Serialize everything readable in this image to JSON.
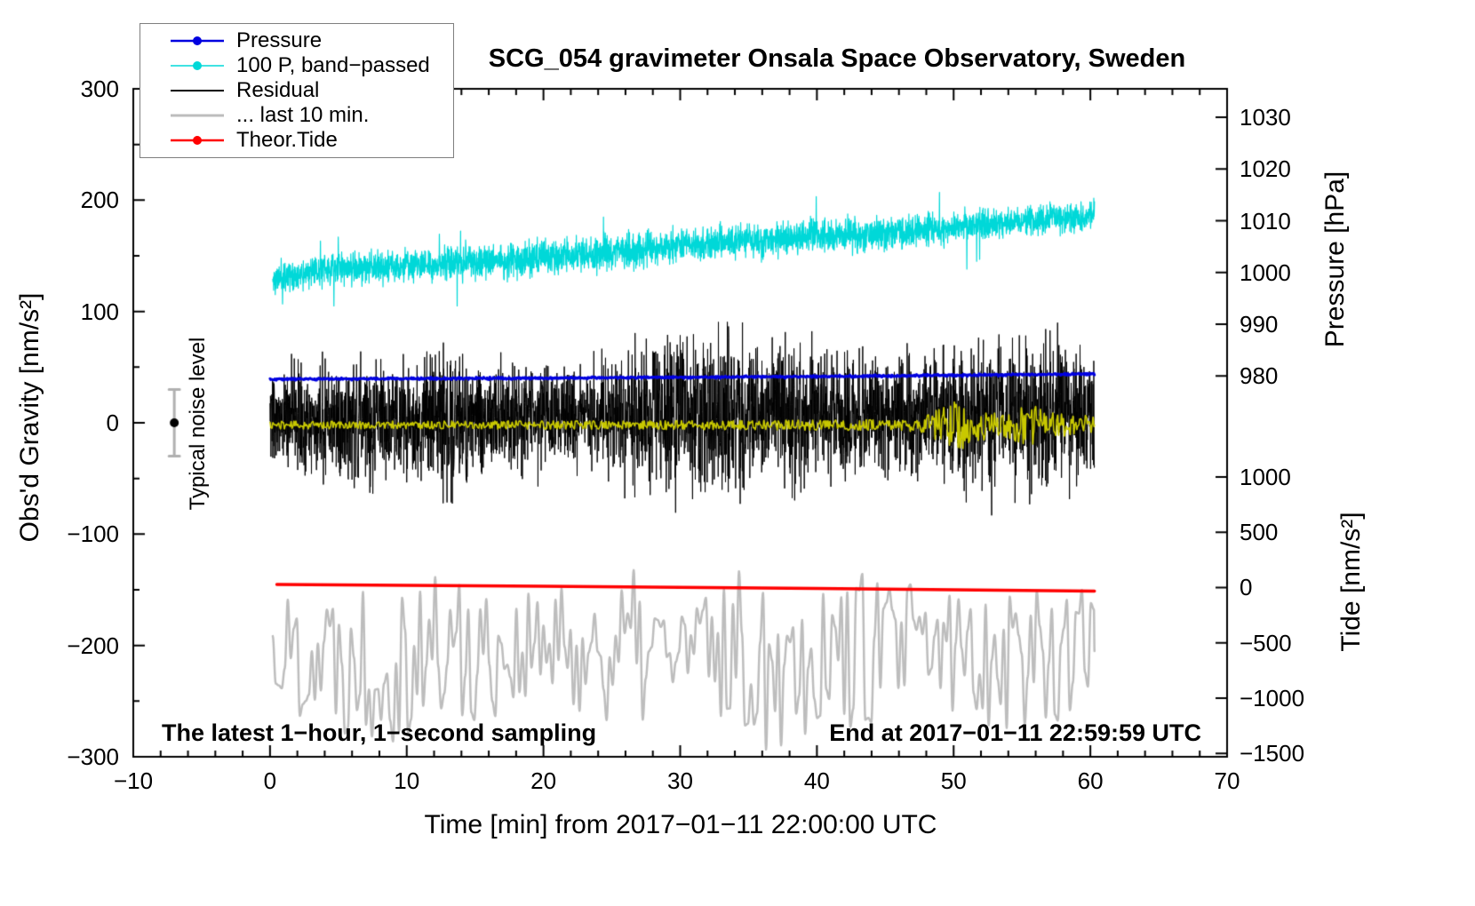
{
  "chart_data": {
    "type": "line",
    "title": "SCG_054 gravimeter Onsala Space Observatory, Sweden",
    "xlabel": "Time [min] from 2017−01−11 22:00:00 UTC",
    "ylabel_left": "Obs'd Gravity [nm/s²]",
    "ylabel_right_top": "Pressure [hPa]",
    "ylabel_right_bottom": "Tide [nm/s²]",
    "grid": false,
    "x_axis": {
      "min": -10,
      "max": 70,
      "major_ticks": [
        -10,
        0,
        10,
        20,
        30,
        40,
        50,
        60,
        70
      ],
      "minor_step": 2
    },
    "y_axis_left": {
      "min": -300,
      "max": 300,
      "major_ticks": [
        -300,
        -200,
        -100,
        0,
        100,
        200,
        300
      ],
      "minor_step": 50
    },
    "y_axis_pressure": {
      "unit": "hPa",
      "ticks": [
        1030,
        1020,
        1010,
        1000,
        990,
        980
      ],
      "ref_value": 980,
      "gravity_offset": 42,
      "gravity_per_unit": 4.648
    },
    "y_axis_tide": {
      "unit": "nm/s²",
      "ticks": [
        1000,
        500,
        0,
        -500,
        -1000,
        -1500
      ],
      "ref_value": 0,
      "gravity_offset": -148,
      "gravity_per_unit": 0.0994
    },
    "legend": [
      {
        "label": "Pressure",
        "color": "#0000e0",
        "marker": true,
        "width": 2.5
      },
      {
        "label": "100 P, band−passed",
        "color": "#00d8d8",
        "marker": true,
        "width": 1.5
      },
      {
        "label": "Residual",
        "color": "#000000",
        "marker": false,
        "width": 2
      },
      {
        "label": "... last 10 min.",
        "color": "#bdbdbd",
        "marker": false,
        "width": 3
      },
      {
        "label": "Theor.Tide",
        "color": "#ff0000",
        "marker": true,
        "width": 2.5
      }
    ],
    "annotations": {
      "bottom_left": "The latest 1−hour, 1−second sampling",
      "bottom_right": "End at 2017−01−11 22:59:59 UTC",
      "noise_label": "Typical noise level"
    },
    "noise_marker": {
      "x": -7,
      "y": 0,
      "error": 30
    },
    "series": [
      {
        "name": "100 P, band-passed",
        "color": "#00d8d8",
        "style": "noisy",
        "width": 1.2,
        "axis": "gravity",
        "seed": 11,
        "points": 3600,
        "x_range": [
          0.2,
          60.3
        ],
        "center_keypoints": [
          [
            0.2,
            127
          ],
          [
            1,
            133
          ],
          [
            3,
            136
          ],
          [
            6,
            139
          ],
          [
            10,
            141
          ],
          [
            14,
            144
          ],
          [
            18,
            146
          ],
          [
            22,
            150
          ],
          [
            26,
            155
          ],
          [
            30,
            159
          ],
          [
            34,
            163
          ],
          [
            38,
            166
          ],
          [
            42,
            169
          ],
          [
            46,
            171
          ],
          [
            50,
            175
          ],
          [
            54,
            180
          ],
          [
            58,
            184
          ],
          [
            60.3,
            186
          ]
        ],
        "amp_keypoints": [
          [
            0.2,
            14
          ],
          [
            20,
            16
          ],
          [
            40,
            16
          ],
          [
            60.3,
            13
          ]
        ],
        "spike_chance": 0.004,
        "spike_scale": 2.5
      },
      {
        "name": "Residual last 10 min",
        "color": "#bdbdbd",
        "style": "smooth",
        "width": 2.5,
        "axis": "gravity",
        "seed": 22,
        "coarse_step": 0.22,
        "x_range": [
          0.2,
          60.3
        ],
        "center_keypoints": [
          [
            0.2,
            -205
          ],
          [
            60.3,
            -205
          ]
        ],
        "amp_keypoints": [
          [
            0.2,
            55
          ],
          [
            4,
            65
          ],
          [
            7,
            85
          ],
          [
            10,
            80
          ],
          [
            13,
            85
          ],
          [
            16,
            60
          ],
          [
            20,
            55
          ],
          [
            24,
            60
          ],
          [
            27,
            75
          ],
          [
            31,
            55
          ],
          [
            34,
            70
          ],
          [
            36,
            95
          ],
          [
            38,
            85
          ],
          [
            41,
            65
          ],
          [
            45,
            75
          ],
          [
            48,
            60
          ],
          [
            52,
            65
          ],
          [
            55,
            75
          ],
          [
            58,
            65
          ],
          [
            60.3,
            60
          ]
        ]
      },
      {
        "name": "Residual",
        "color": "#000000",
        "style": "noisy",
        "width": 1,
        "axis": "gravity",
        "seed": 33,
        "points": 3600,
        "x_range": [
          0,
          60.3
        ],
        "center_keypoints": [
          [
            0,
            0
          ],
          [
            20,
            5
          ],
          [
            40,
            8
          ],
          [
            60.3,
            5
          ]
        ],
        "amp_keypoints": [
          [
            0,
            45
          ],
          [
            5,
            55
          ],
          [
            8,
            60
          ],
          [
            11,
            50
          ],
          [
            13,
            70
          ],
          [
            16,
            45
          ],
          [
            20,
            50
          ],
          [
            24,
            45
          ],
          [
            27,
            65
          ],
          [
            30,
            70
          ],
          [
            33,
            75
          ],
          [
            36,
            60
          ],
          [
            39,
            65
          ],
          [
            42,
            55
          ],
          [
            45,
            55
          ],
          [
            48,
            60
          ],
          [
            51,
            65
          ],
          [
            54,
            55
          ],
          [
            56,
            85
          ],
          [
            58,
            60
          ],
          [
            60.3,
            55
          ]
        ],
        "spike_chance": 0.003,
        "spike_scale": 1.2
      },
      {
        "name": "Residual band-passed",
        "color": "#c8c800",
        "style": "smooth",
        "width": 1.6,
        "axis": "gravity",
        "seed": 44,
        "coarse_step": 0.07,
        "x_range": [
          0,
          60.3
        ],
        "center_keypoints": [
          [
            0,
            -2
          ],
          [
            60.3,
            -2
          ]
        ],
        "amp_keypoints": [
          [
            0,
            3.5
          ],
          [
            30,
            4
          ],
          [
            45,
            5
          ],
          [
            47.5,
            6
          ],
          [
            49,
            16
          ],
          [
            50.5,
            24
          ],
          [
            52,
            14
          ],
          [
            53.5,
            10
          ],
          [
            55,
            20
          ],
          [
            56.5,
            16
          ],
          [
            58,
            10
          ],
          [
            60.3,
            9
          ]
        ]
      },
      {
        "name": "Pressure",
        "color": "#0000e0",
        "style": "noisy",
        "width": 3,
        "axis": "pressure",
        "seed": 55,
        "points": 1200,
        "x_range": [
          0,
          60.3
        ],
        "center_keypoints": [
          [
            0,
            979.4
          ],
          [
            20,
            979.6
          ],
          [
            40,
            979.9
          ],
          [
            60.3,
            980.4
          ]
        ],
        "amp_keypoints": [
          [
            0,
            0.22
          ],
          [
            60.3,
            0.22
          ]
        ],
        "spike_chance": 0,
        "spike_scale": 0
      },
      {
        "name": "Theor.Tide",
        "color": "#ff0000",
        "style": "line",
        "width": 3.5,
        "axis": "tide",
        "keypoints": [
          [
            0.5,
            28
          ],
          [
            10,
            20
          ],
          [
            20,
            11
          ],
          [
            30,
            2
          ],
          [
            40,
            -8
          ],
          [
            50,
            -20
          ],
          [
            60.3,
            -33
          ]
        ]
      }
    ]
  }
}
